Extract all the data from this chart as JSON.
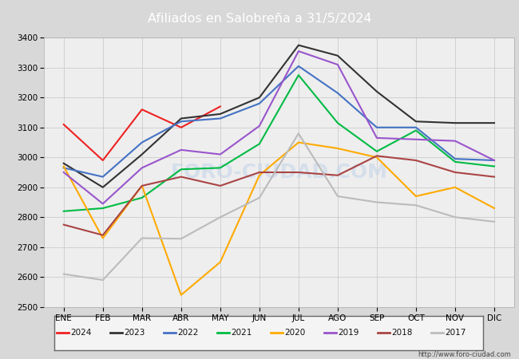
{
  "title": "Afiliados en Salobreña a 31/5/2024",
  "title_color": "#ffffff",
  "title_bg_color": "#4a6fa5",
  "months": [
    "ENE",
    "FEB",
    "MAR",
    "ABR",
    "MAY",
    "JUN",
    "JUL",
    "AGO",
    "SEP",
    "OCT",
    "NOV",
    "DIC"
  ],
  "ylim": [
    2500,
    3400
  ],
  "yticks": [
    2500,
    2600,
    2700,
    2800,
    2900,
    3000,
    3100,
    3200,
    3300,
    3400
  ],
  "series": {
    "2024": {
      "color": "#ee2222",
      "data": [
        3110,
        2990,
        3160,
        3100,
        3170,
        null,
        null,
        null,
        null,
        null,
        null,
        null
      ]
    },
    "2023": {
      "color": "#333333",
      "data": [
        2980,
        2900,
        3010,
        3130,
        3145,
        3200,
        3375,
        3340,
        3220,
        3120,
        3115,
        3115
      ]
    },
    "2022": {
      "color": "#4472c4",
      "data": [
        2965,
        2935,
        3050,
        3120,
        3130,
        3180,
        3305,
        3215,
        3100,
        3100,
        2995,
        2990
      ]
    },
    "2021": {
      "color": "#00bb44",
      "data": [
        2820,
        2830,
        2865,
        2960,
        2965,
        3045,
        3275,
        3115,
        3020,
        3090,
        2985,
        2970
      ]
    },
    "2020": {
      "color": "#ffaa00",
      "data": [
        2970,
        2730,
        2905,
        2540,
        2650,
        2940,
        3050,
        3030,
        3000,
        2870,
        2900,
        2830
      ]
    },
    "2019": {
      "color": "#9955cc",
      "data": [
        2950,
        2845,
        2965,
        3025,
        3010,
        3105,
        3355,
        3310,
        3065,
        3060,
        3055,
        2990
      ]
    },
    "2018": {
      "color": "#aa4444",
      "data": [
        2775,
        2740,
        2905,
        2935,
        2905,
        2950,
        2950,
        2940,
        3005,
        2990,
        2950,
        2935
      ]
    },
    "2017": {
      "color": "#bbbbbb",
      "data": [
        2610,
        2590,
        2730,
        2728,
        2800,
        2865,
        3080,
        2870,
        2850,
        2840,
        2800,
        2785
      ]
    }
  },
  "watermark": "FORO-CIUDAD.COM",
  "url": "http://www.foro-ciudad.com",
  "bg_color": "#d8d8d8",
  "plot_bg_color": "#eeeeee",
  "grid_color": "#cccccc",
  "legend_years": [
    "2024",
    "2023",
    "2022",
    "2021",
    "2020",
    "2019",
    "2018",
    "2017"
  ]
}
